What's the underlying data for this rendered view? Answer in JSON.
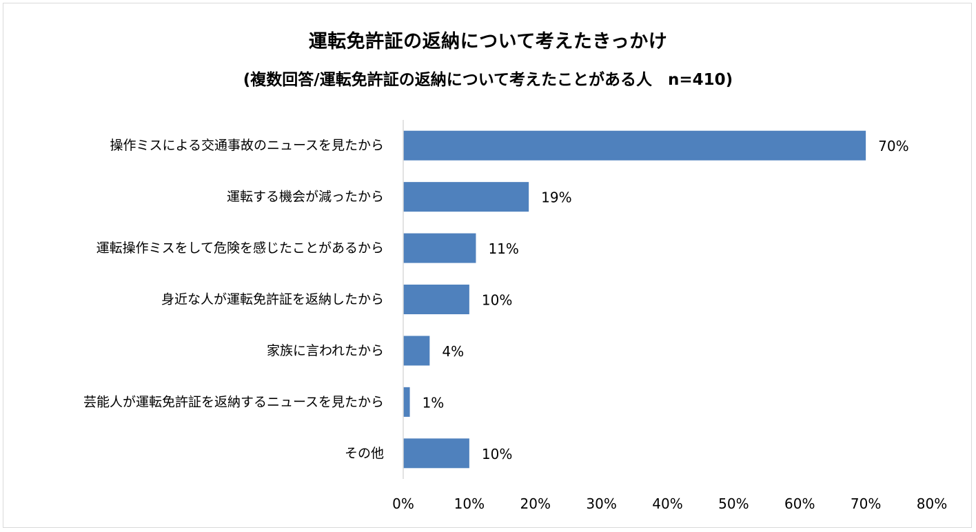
{
  "chart_data": {
    "type": "bar",
    "orientation": "horizontal",
    "title": "運転免許証の返納について考えたきっかけ",
    "subtitle": "(複数回答/運転免許証の返納について考えたことがある人　n=410)",
    "categories": [
      "操作ミスによる交通事故のニュースを見たから",
      "運転する機会が減ったから",
      "運転操作ミスをして危険を感じたことがあるから",
      "身近な人が運転免許証を返納したから",
      "家族に言われたから",
      "芸能人が運転免許証を返納するニュースを見たから",
      "その他"
    ],
    "values": [
      70,
      19,
      11,
      10,
      4,
      1,
      10
    ],
    "value_labels": [
      "70%",
      "19%",
      "11%",
      "10%",
      "4%",
      "1%",
      "10%"
    ],
    "xlim": [
      0,
      80
    ],
    "xticks": [
      0,
      10,
      20,
      30,
      40,
      50,
      60,
      70,
      80
    ],
    "xtick_labels": [
      "0%",
      "10%",
      "20%",
      "30%",
      "40%",
      "50%",
      "60%",
      "70%",
      "80%"
    ],
    "bar_color": "#4f81bd",
    "grid": false,
    "legend": "none"
  }
}
